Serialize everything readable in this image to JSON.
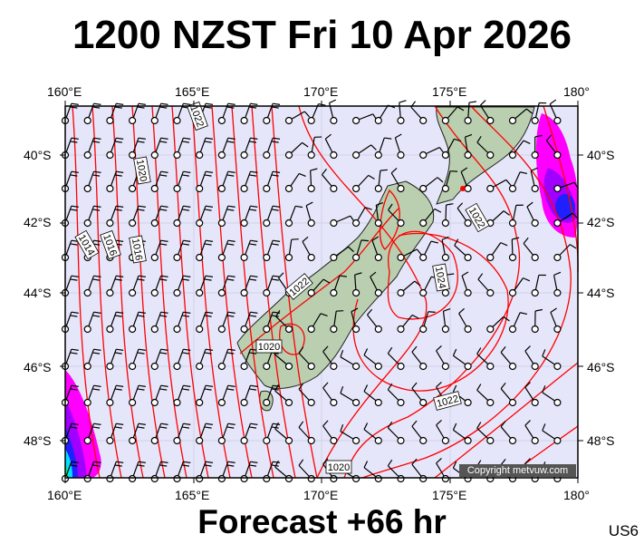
{
  "title": "1200 NZST Fri 10 Apr 2026",
  "footer": "Forecast +66 hr",
  "product_code": "US6",
  "copyright": "Copyright metvuw.com",
  "lon_labels": [
    "160°E",
    "165°E",
    "170°E",
    "175°E",
    "180°"
  ],
  "lat_labels": [
    "40°S",
    "42°S",
    "44°S",
    "46°S",
    "48°S"
  ],
  "contour_labels": [
    "1022",
    "1020",
    "1014",
    "1016",
    "1016",
    "1022",
    "1024",
    "1022",
    "1020",
    "1022",
    "1020"
  ],
  "colors": {
    "ocean": "#e6e6fa",
    "isobar": "#ff0000",
    "land": "#b9cfb0",
    "precip_light": "#ff00ff",
    "precip_mid": "#a000ff",
    "precip_heavy": "#2020ff"
  }
}
